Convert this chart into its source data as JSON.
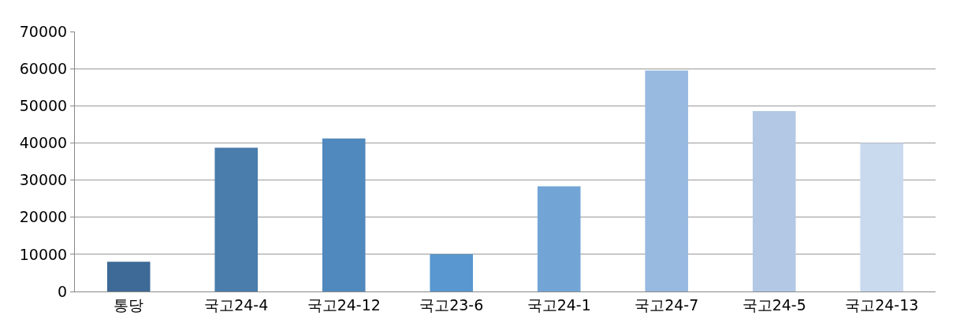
{
  "chart_data": {
    "type": "bar",
    "categories": [
      "통당",
      "국고24-4",
      "국고24-12",
      "국고23-6",
      "국고24-1",
      "국고24-7",
      "국고24-5",
      "국고24-13"
    ],
    "values": [
      8000,
      38700,
      41200,
      10000,
      28300,
      59500,
      48600,
      40000
    ],
    "colors": [
      "#3d6a96",
      "#4a7cac",
      "#5089be",
      "#5897cf",
      "#72a5d6",
      "#98b9e0",
      "#b3c8e5",
      "#c9d9ee"
    ],
    "ylim": [
      0,
      70000
    ],
    "yticks": [
      0,
      10000,
      20000,
      30000,
      40000,
      50000,
      60000,
      70000
    ],
    "grid": "y"
  }
}
